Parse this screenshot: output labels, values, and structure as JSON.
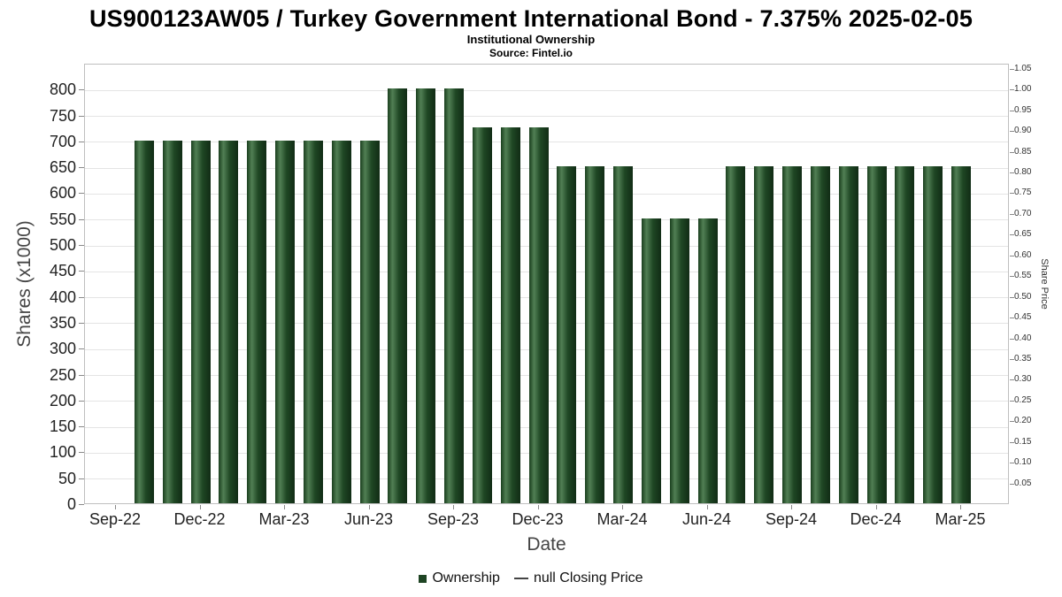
{
  "chart_data": {
    "type": "bar",
    "title": "US900123AW05 / Turkey Government International Bond - 7.375% 2025-02-05",
    "subtitle": "Institutional Ownership",
    "source": "Source: Fintel.io",
    "grid": true,
    "legend_position": "bottom",
    "bar_color": "#1e4423",
    "x_axis": {
      "label": "Date",
      "tick_labels": [
        "Sep-22",
        "Dec-22",
        "Mar-23",
        "Jun-23",
        "Sep-23",
        "Dec-23",
        "Mar-24",
        "Jun-24",
        "Sep-24",
        "Dec-24",
        "Mar-25"
      ]
    },
    "left_axis": {
      "label": "Shares (x1000)",
      "min": 0,
      "max": 850,
      "ticks": [
        0,
        50,
        100,
        150,
        200,
        250,
        300,
        350,
        400,
        450,
        500,
        550,
        600,
        650,
        700,
        750,
        800
      ]
    },
    "right_axis": {
      "label": "Share Price",
      "min": 0,
      "max": 1.0625,
      "ticks": [
        "1.05",
        "1.00",
        "0.95",
        "0.90",
        "0.85",
        "0.80",
        "0.75",
        "0.70",
        "0.65",
        "0.60",
        "0.55",
        "0.50",
        "0.45",
        "0.40",
        "0.35",
        "0.30",
        "0.25",
        "0.20",
        "0.15",
        "0.10",
        "0.05"
      ]
    },
    "categories": [
      "Oct-22",
      "Nov-22",
      "Dec-22",
      "Jan-23",
      "Feb-23",
      "Mar-23",
      "Apr-23",
      "May-23",
      "Jun-23",
      "Jul-23",
      "Aug-23",
      "Sep-23",
      "Oct-23",
      "Nov-23",
      "Dec-23",
      "Jan-24",
      "Feb-24",
      "Mar-24",
      "Apr-24",
      "May-24",
      "Jun-24",
      "Jul-24",
      "Aug-24",
      "Sep-24",
      "Oct-24",
      "Nov-24",
      "Dec-24",
      "Jan-25",
      "Feb-25",
      "Mar-25"
    ],
    "values": [
      700,
      700,
      700,
      700,
      700,
      700,
      700,
      700,
      700,
      800,
      800,
      800,
      725,
      725,
      725,
      650,
      650,
      650,
      550,
      550,
      550,
      650,
      650,
      650,
      650,
      650,
      650,
      650,
      650,
      650
    ],
    "legend": [
      {
        "label": "Ownership",
        "marker": "square",
        "color": "#1e4423"
      },
      {
        "label": "null Closing Price",
        "marker": "line",
        "color": "#444444"
      }
    ]
  }
}
